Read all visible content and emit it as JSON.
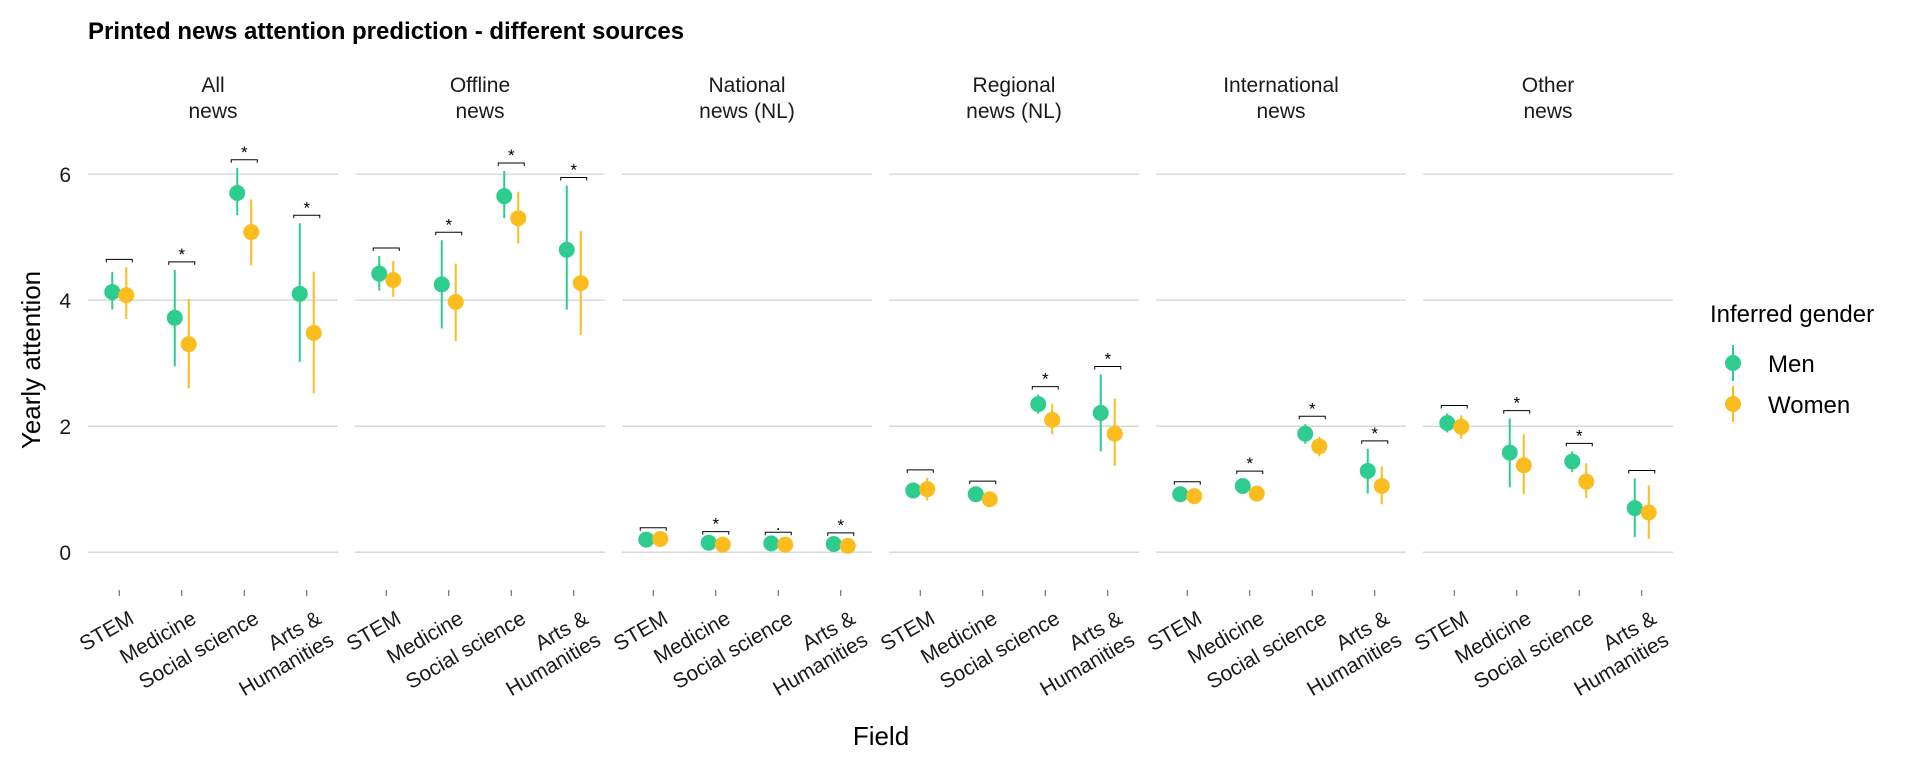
{
  "chart_data": {
    "type": "scatter",
    "title": "Printed news attention prediction - different sources",
    "xlabel": "Field",
    "ylabel": "Yearly attention",
    "ylim": [
      -0.6,
      6.7
    ],
    "yticks": [
      0,
      2,
      4,
      6
    ],
    "grid": true,
    "legend": {
      "title": "Inferred gender",
      "position": "right"
    },
    "categories": [
      "STEM",
      "Medicine",
      "Social science",
      "Arts &\nHumanities"
    ],
    "series": [
      {
        "name": "Men",
        "color": "#2ECC8E"
      },
      {
        "name": "Women",
        "color": "#FBBC1E"
      }
    ],
    "panels": [
      {
        "label": "All\nnews",
        "men": [
          {
            "y": 4.13,
            "lo": 3.85,
            "hi": 4.45
          },
          {
            "y": 3.72,
            "lo": 2.95,
            "hi": 4.48
          },
          {
            "y": 5.7,
            "lo": 5.35,
            "hi": 6.1
          },
          {
            "y": 4.1,
            "lo": 3.02,
            "hi": 5.22
          }
        ],
        "women": [
          {
            "y": 4.08,
            "lo": 3.7,
            "hi": 4.52
          },
          {
            "y": 3.3,
            "lo": 2.6,
            "hi": 4.02
          },
          {
            "y": 5.08,
            "lo": 4.55,
            "hi": 5.6
          },
          {
            "y": 3.48,
            "lo": 2.52,
            "hi": 4.45
          }
        ],
        "sig": [
          "",
          "*",
          "*",
          "*"
        ]
      },
      {
        "label": "Offline\nnews",
        "men": [
          {
            "y": 4.42,
            "lo": 4.15,
            "hi": 4.7
          },
          {
            "y": 4.25,
            "lo": 3.55,
            "hi": 4.95
          },
          {
            "y": 5.65,
            "lo": 5.3,
            "hi": 6.05
          },
          {
            "y": 4.8,
            "lo": 3.85,
            "hi": 5.82
          }
        ],
        "women": [
          {
            "y": 4.32,
            "lo": 4.05,
            "hi": 4.62
          },
          {
            "y": 3.97,
            "lo": 3.35,
            "hi": 4.58
          },
          {
            "y": 5.3,
            "lo": 4.9,
            "hi": 5.72
          },
          {
            "y": 4.27,
            "lo": 3.45,
            "hi": 5.1
          }
        ],
        "sig": [
          "",
          "*",
          "*",
          "*"
        ]
      },
      {
        "label": "National\nnews (NL)",
        "men": [
          {
            "y": 0.2,
            "lo": 0.15,
            "hi": 0.25
          },
          {
            "y": 0.15,
            "lo": 0.1,
            "hi": 0.2
          },
          {
            "y": 0.14,
            "lo": 0.09,
            "hi": 0.19
          },
          {
            "y": 0.13,
            "lo": 0.08,
            "hi": 0.18
          }
        ],
        "women": [
          {
            "y": 0.21,
            "lo": 0.16,
            "hi": 0.26
          },
          {
            "y": 0.12,
            "lo": 0.07,
            "hi": 0.17
          },
          {
            "y": 0.12,
            "lo": 0.07,
            "hi": 0.17
          },
          {
            "y": 0.1,
            "lo": 0.05,
            "hi": 0.15
          }
        ],
        "sig": [
          "",
          "*",
          ".",
          "*"
        ]
      },
      {
        "label": "Regional\nnews (NL)",
        "men": [
          {
            "y": 0.98,
            "lo": 0.88,
            "hi": 1.08
          },
          {
            "y": 0.92,
            "lo": 0.84,
            "hi": 1.0
          },
          {
            "y": 2.35,
            "lo": 2.2,
            "hi": 2.5
          },
          {
            "y": 2.21,
            "lo": 1.6,
            "hi": 2.82
          }
        ],
        "women": [
          {
            "y": 1.0,
            "lo": 0.82,
            "hi": 1.18
          },
          {
            "y": 0.84,
            "lo": 0.72,
            "hi": 0.96
          },
          {
            "y": 2.1,
            "lo": 1.87,
            "hi": 2.35
          },
          {
            "y": 1.88,
            "lo": 1.37,
            "hi": 2.44
          }
        ],
        "sig": [
          "",
          "",
          "*",
          "*"
        ]
      },
      {
        "label": "International\nnews",
        "men": [
          {
            "y": 0.92,
            "lo": 0.85,
            "hi": 0.99
          },
          {
            "y": 1.05,
            "lo": 0.96,
            "hi": 1.16
          },
          {
            "y": 1.88,
            "lo": 1.72,
            "hi": 2.03
          },
          {
            "y": 1.29,
            "lo": 0.93,
            "hi": 1.64
          }
        ],
        "women": [
          {
            "y": 0.89,
            "lo": 0.83,
            "hi": 0.96
          },
          {
            "y": 0.93,
            "lo": 0.82,
            "hi": 1.05
          },
          {
            "y": 1.68,
            "lo": 1.52,
            "hi": 1.83
          },
          {
            "y": 1.05,
            "lo": 0.76,
            "hi": 1.36
          }
        ],
        "sig": [
          "",
          "*",
          "*",
          "*"
        ]
      },
      {
        "label": "Other\nnews",
        "men": [
          {
            "y": 2.05,
            "lo": 1.9,
            "hi": 2.2
          },
          {
            "y": 1.58,
            "lo": 1.03,
            "hi": 2.12
          },
          {
            "y": 1.44,
            "lo": 1.27,
            "hi": 1.6
          },
          {
            "y": 0.7,
            "lo": 0.24,
            "hi": 1.17
          }
        ],
        "women": [
          {
            "y": 1.99,
            "lo": 1.8,
            "hi": 2.17
          },
          {
            "y": 1.38,
            "lo": 0.92,
            "hi": 1.87
          },
          {
            "y": 1.12,
            "lo": 0.86,
            "hi": 1.41
          },
          {
            "y": 0.63,
            "lo": 0.21,
            "hi": 1.06
          }
        ],
        "sig": [
          "",
          "*",
          "*",
          ""
        ]
      }
    ]
  }
}
